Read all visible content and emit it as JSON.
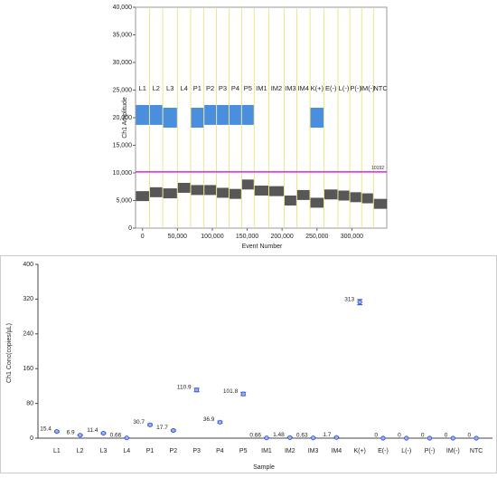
{
  "chart_data": [
    {
      "type": "amplitude",
      "ylabel": "Ch1 Amplitude",
      "xlabel": "Event Number",
      "xlim": [
        -10000,
        350000
      ],
      "ylim": [
        0,
        40000
      ],
      "xticks": [
        0,
        {
          "value": 50000,
          "label": "50,000"
        },
        {
          "value": 100000,
          "label": "100,000"
        },
        {
          "value": 150000,
          "label": "150,000"
        },
        {
          "value": 200000,
          "label": "200,000"
        },
        {
          "value": 250000,
          "label": "250,000"
        },
        {
          "value": 300000,
          "label": "300,000"
        }
      ],
      "yticks": [
        0,
        {
          "value": 5000,
          "label": "5,000"
        },
        {
          "value": 10000,
          "label": "10,000"
        },
        {
          "value": 15000,
          "label": "15,000"
        },
        {
          "value": 20000,
          "label": "20,000"
        },
        {
          "value": 25000,
          "label": "25,000"
        },
        {
          "value": 30000,
          "label": "30,000"
        },
        {
          "value": 35000,
          "label": "35,000"
        },
        {
          "value": 40000,
          "label": "40,000"
        }
      ],
      "categories": [
        "L1",
        "L2",
        "L3",
        "L4",
        "P1",
        "P2",
        "P3",
        "P4",
        "P5",
        "IM1",
        "IM2",
        "IM3",
        "IM4",
        "K(+)",
        "E(-)",
        "L(-)",
        "P(-)",
        "IM(-)",
        "NTC"
      ],
      "bins": [
        -10000,
        10000,
        29000,
        50000,
        69000,
        88000,
        106000,
        124000,
        142000,
        160000,
        181000,
        203000,
        221000,
        240000,
        260000,
        280000,
        297000,
        314000,
        331000,
        351000
      ],
      "threshold": 10192,
      "threshold_color": "#e020e0",
      "divider_color": "#e8e070",
      "series": [
        {
          "color": "#3a3a3a",
          "values": [
            5800,
            6500,
            6300,
            7300,
            6900,
            6900,
            6400,
            6200,
            7900,
            6800,
            6700,
            5000,
            6000,
            4600,
            6100,
            5900,
            5600,
            5400,
            4400
          ]
        },
        {
          "color": "#2a7ad8",
          "values": [
            20500,
            20500,
            20000,
            null,
            20000,
            20500,
            20500,
            20500,
            20500,
            null,
            null,
            null,
            null,
            20000,
            null,
            null,
            null,
            null,
            null
          ]
        }
      ]
    },
    {
      "type": "point",
      "ylabel": "Ch1 Conc(copies/µL)",
      "xlabel": "Sample",
      "ylim": [
        0,
        400
      ],
      "yticks": [
        0,
        80,
        160,
        240,
        320,
        400
      ],
      "categories": [
        "L1",
        "L2",
        "L3",
        "L4",
        "P1",
        "P2",
        "P3",
        "P4",
        "P5",
        "IM1",
        "IM2",
        "IM3",
        "IM4",
        "K(+)",
        "E(-)",
        "L(-)",
        "P(-)",
        "IM(-)",
        "NTC"
      ],
      "values": [
        15.4,
        6.9,
        11.4,
        0.66,
        30.7,
        17.7,
        110.9,
        36.9,
        101.8,
        0.66,
        1.48,
        0.63,
        1.7,
        313,
        0,
        0,
        0,
        0,
        0
      ],
      "errors": [
        1.5,
        1,
        1.3,
        0.3,
        2,
        1.6,
        4,
        2.3,
        3.8,
        0.3,
        0.5,
        0.3,
        0.5,
        6,
        0,
        0,
        0,
        0,
        0
      ],
      "color": "#3050d0"
    }
  ]
}
